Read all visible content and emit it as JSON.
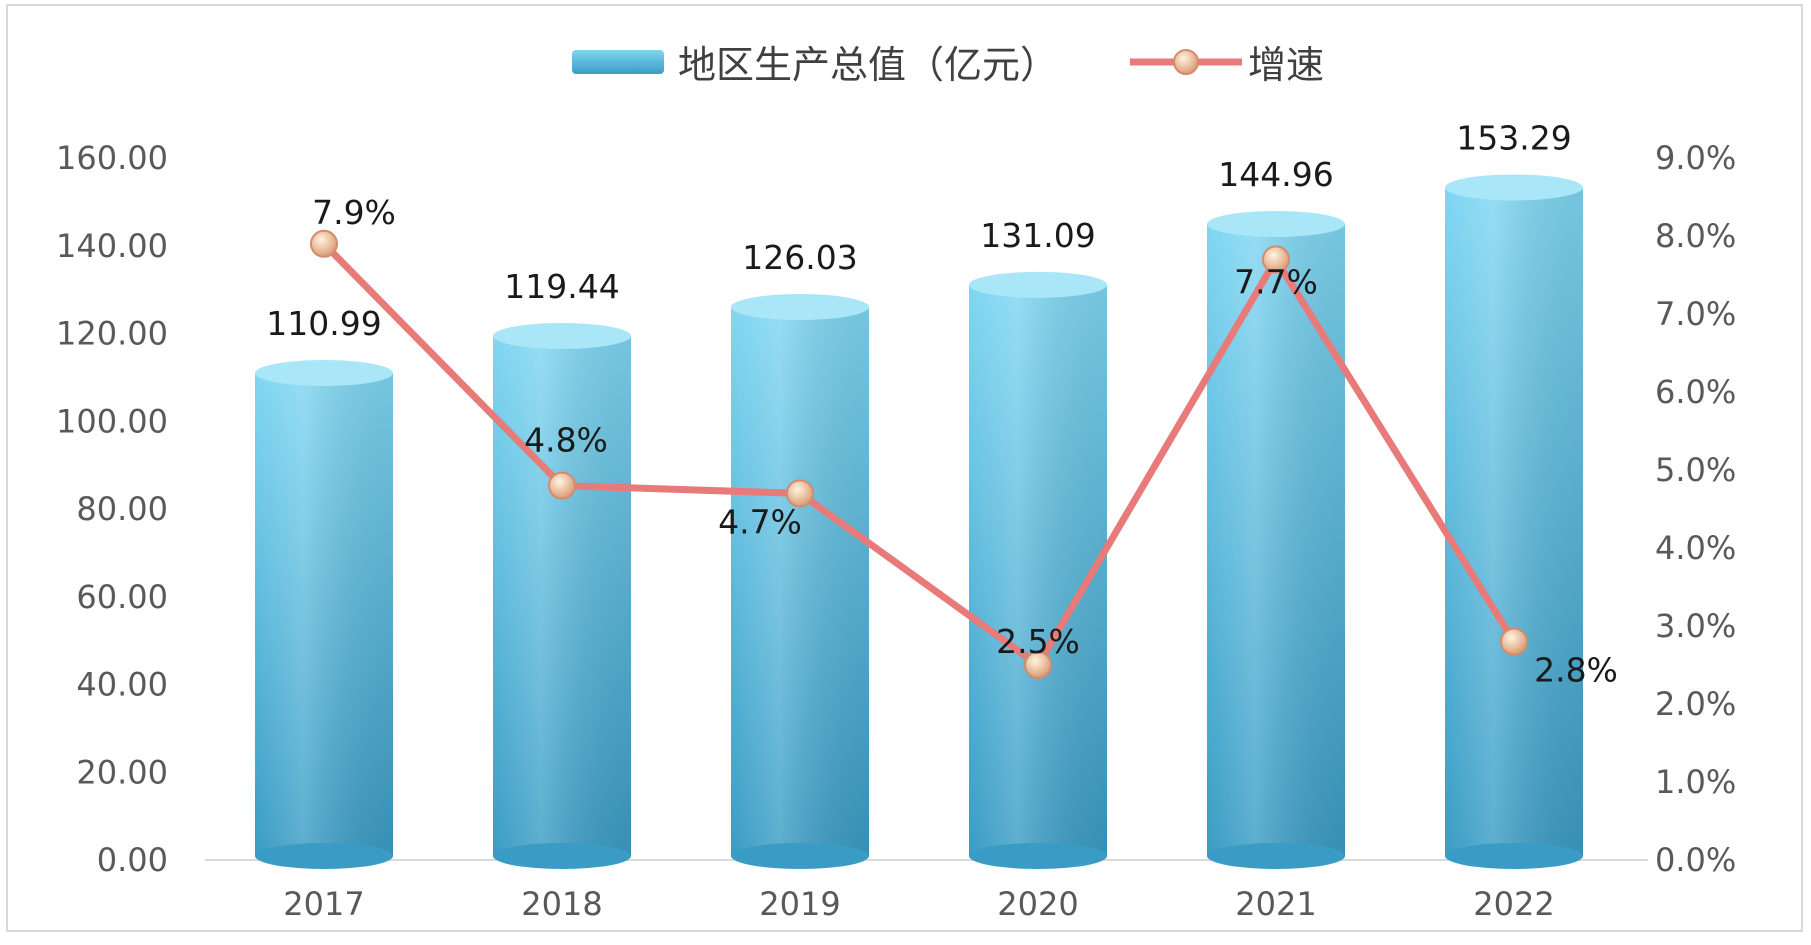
{
  "chart_data": {
    "type": "bar",
    "categories": [
      "2017",
      "2018",
      "2019",
      "2020",
      "2021",
      "2022"
    ],
    "series": [
      {
        "name": "地区生产总值（亿元）",
        "type": "bar",
        "axis": "left",
        "values": [
          110.99,
          119.44,
          126.03,
          131.09,
          144.96,
          153.29
        ],
        "labels": [
          "110.99",
          "119.44",
          "126.03",
          "131.09",
          "144.96",
          "153.29"
        ],
        "color": "#5bc3e6"
      },
      {
        "name": "增速",
        "type": "line",
        "axis": "right",
        "values": [
          7.9,
          4.8,
          4.7,
          2.5,
          7.7,
          2.8
        ],
        "labels": [
          "7.9%",
          "4.8%",
          "4.7%",
          "2.5%",
          "7.7%",
          "2.8%"
        ],
        "color": "#e87a7a"
      }
    ],
    "y_left": {
      "range": [
        0,
        160
      ],
      "ticks": [
        "0.00",
        "20.00",
        "40.00",
        "60.00",
        "80.00",
        "100.00",
        "120.00",
        "140.00",
        "160.00"
      ]
    },
    "y_right": {
      "range": [
        0,
        9
      ],
      "ticks": [
        "0.0%",
        "1.0%",
        "2.0%",
        "3.0%",
        "4.0%",
        "5.0%",
        "6.0%",
        "7.0%",
        "8.0%",
        "9.0%"
      ]
    },
    "legend": "top-center",
    "grid": false
  }
}
